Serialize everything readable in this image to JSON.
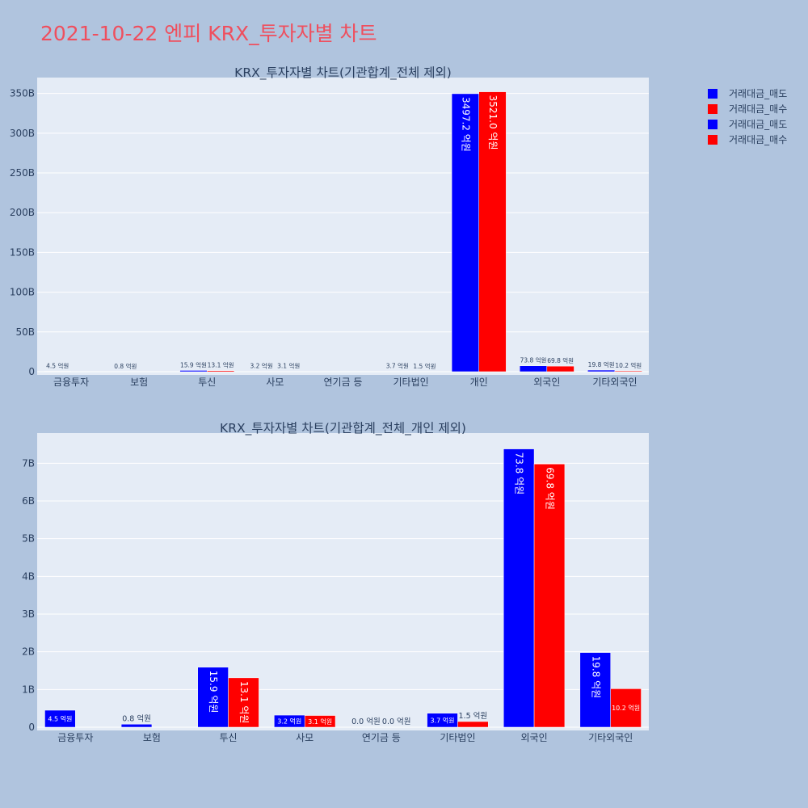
{
  "page": {
    "title": "2021-10-22 엔피 KRX_투자자별 차트"
  },
  "legend": [
    {
      "label": "거래대금_매도",
      "color": "#0000ff"
    },
    {
      "label": "거래대금_매수",
      "color": "#ff0000"
    },
    {
      "label": "거래대금_매도",
      "color": "#0000ff"
    },
    {
      "label": "거래대금_매수",
      "color": "#ff0000"
    }
  ],
  "colors": {
    "plot_bg": "#e5ecf6",
    "page_bg": "#b0c4de",
    "sell": "#0000ff",
    "buy": "#ff0000"
  },
  "chart_data": [
    {
      "type": "bar",
      "title": "KRX_투자자별 차트(기관합계_전체 제외)",
      "categories": [
        "금융투자",
        "보험",
        "투신",
        "사모",
        "연기금 등",
        "기타법인",
        "개인",
        "외국인",
        "기타외국인"
      ],
      "yticks": [
        "0",
        "50B",
        "100B",
        "150B",
        "200B",
        "250B",
        "300B",
        "350B"
      ],
      "ytick_values": [
        0,
        50,
        100,
        150,
        200,
        250,
        300,
        350
      ],
      "ylim": [
        0,
        370
      ],
      "unit": "B (10억원)",
      "grid": true,
      "series": [
        {
          "name": "거래대금_매도",
          "color": "#0000ff",
          "values": [
            0.45,
            0.08,
            1.59,
            0.32,
            0.0,
            0.37,
            349.72,
            7.38,
            1.98
          ],
          "labels": [
            "4.5 억원",
            "0.8 억원",
            "15.9 억원",
            "3.2 억원",
            "",
            "3.7 억원",
            "3497.2 억원",
            "73.8 억원",
            "19.8 억원"
          ]
        },
        {
          "name": "거래대금_매수",
          "color": "#ff0000",
          "values": [
            0.0,
            0.0,
            1.31,
            0.31,
            0.0,
            0.15,
            352.1,
            6.98,
            1.02
          ],
          "labels": [
            "",
            "",
            "13.1 억원",
            "3.1 억원",
            "",
            "1.5 억원",
            "3521.0 억원",
            "69.8 억원",
            "10.2 억원"
          ]
        }
      ]
    },
    {
      "type": "bar",
      "title": "KRX_투자자별 차트(기관합계_전체_개인 제외)",
      "categories": [
        "금융투자",
        "보험",
        "투신",
        "사모",
        "연기금 등",
        "기타법인",
        "외국인",
        "기타외국인"
      ],
      "yticks": [
        "0",
        "1B",
        "2B",
        "3B",
        "4B",
        "5B",
        "6B",
        "7B"
      ],
      "ytick_values": [
        0,
        1,
        2,
        3,
        4,
        5,
        6,
        7
      ],
      "ylim": [
        0,
        7.8
      ],
      "unit": "B (10억원)",
      "grid": true,
      "series": [
        {
          "name": "거래대금_매도",
          "color": "#0000ff",
          "values": [
            0.45,
            0.08,
            1.59,
            0.32,
            0.0,
            0.37,
            7.38,
            1.98
          ],
          "labels": [
            "4.5 억원",
            "0.8 억원",
            "15.9 억원",
            "3.2 억원",
            "0.0 억원",
            "3.7 억원",
            "73.8 억원",
            "19.8 억원"
          ]
        },
        {
          "name": "거래대금_매수",
          "color": "#ff0000",
          "values": [
            0.0,
            0.0,
            1.31,
            0.31,
            0.0,
            0.15,
            6.98,
            1.02
          ],
          "labels": [
            "",
            "",
            "13.1 억원",
            "3.1 억원",
            "0.0 억원",
            "1.5 억원",
            "69.8 억원",
            "10.2 억원"
          ]
        }
      ]
    }
  ]
}
